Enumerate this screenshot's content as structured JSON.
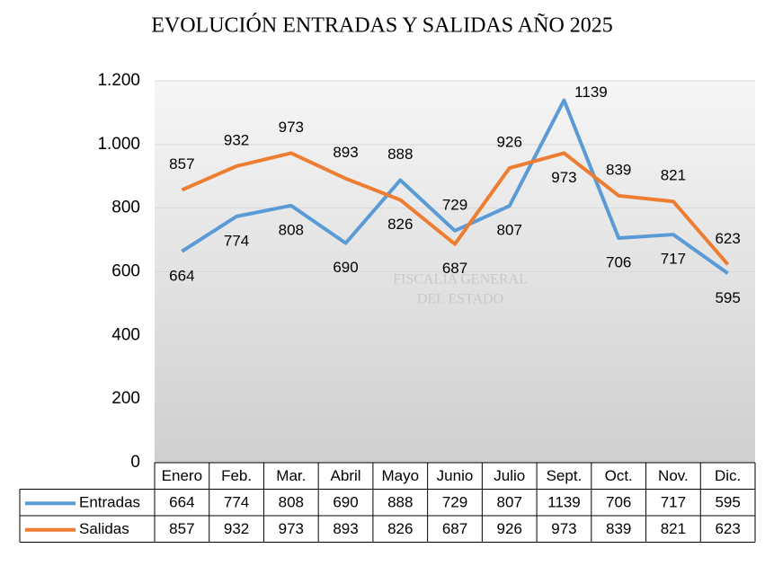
{
  "chart_data": {
    "type": "line",
    "title": "EVOLUCIÓN ENTRADAS Y SALIDAS AÑO 2025",
    "watermark": [
      "FISCALIA GENERAL",
      "DEL ESTADO"
    ],
    "categories": [
      "Enero",
      "Feb.",
      "Mar.",
      "Abril",
      "Mayo",
      "Junio",
      "Julio",
      "Sept.",
      "Oct.",
      "Nov.",
      "Dic."
    ],
    "series": [
      {
        "name": "Entradas",
        "color": "#5b9bd5",
        "values": [
          664,
          774,
          808,
          690,
          888,
          729,
          807,
          1139,
          706,
          717,
          595
        ]
      },
      {
        "name": "Salidas",
        "color": "#ed7d31",
        "values": [
          857,
          932,
          973,
          893,
          826,
          687,
          926,
          973,
          839,
          821,
          623
        ]
      }
    ],
    "ylim": [
      0,
      1200
    ],
    "yticks": [
      0,
      200,
      400,
      600,
      800,
      {
        "value": 1000,
        "label": "1.000"
      },
      {
        "value": 1200,
        "label": "1.200"
      }
    ],
    "grid": true
  }
}
